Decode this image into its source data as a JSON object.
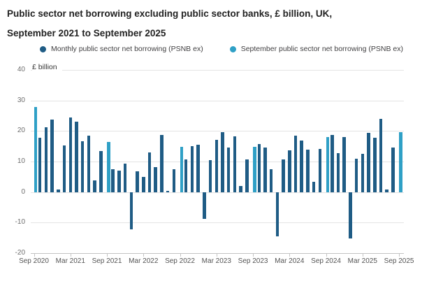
{
  "header": {
    "title_line1": "Public sector net borrowing excluding public sector banks, £ billion, UK,",
    "title_line2": "September 2021 to September 2025"
  },
  "legend": {
    "items": [
      {
        "label": "Monthly public sector net borrowing (PSNB ex)",
        "color": "#1f5c85"
      },
      {
        "label": "September public sector net borrowing (PSNB ex)",
        "color": "#2fa0c6"
      }
    ]
  },
  "axes": {
    "y_unit_label": "£ billion",
    "y_ticks": [
      40,
      30,
      20,
      10,
      0,
      -10,
      -20
    ],
    "x_ticks": [
      "Sep 2020",
      "Mar 2021",
      "Sep 2021",
      "Mar 2022",
      "Sep 2022",
      "Mar 2023",
      "Sep 2023",
      "Mar 2024",
      "Sep 2024",
      "Mar 2025",
      "Sep 2025"
    ]
  },
  "colors": {
    "monthly_bar": "#1f5c85",
    "september_bar": "#2fa0c6",
    "gridline": "#e4e4e4",
    "axis_line": "#c3c3c3",
    "title_text": "#222222",
    "x_tick_text": "#545454",
    "y_tick_text": "#6e6e6e",
    "legend_text": "#414042"
  },
  "chart_data": {
    "type": "bar",
    "title": "Public sector net borrowing excluding public sector banks, £ billion, UK, September 2021 to September 2025",
    "xlabel": "",
    "ylabel": "£ billion",
    "ylim": [
      -20,
      40
    ],
    "grid": "horizontal",
    "legend_position": "top",
    "x": [
      "Sep 2020",
      "Oct 2020",
      "Nov 2020",
      "Dec 2020",
      "Jan 2021",
      "Feb 2021",
      "Mar 2021",
      "Apr 2021",
      "May 2021",
      "Jun 2021",
      "Jul 2021",
      "Aug 2021",
      "Sep 2021",
      "Oct 2021",
      "Nov 2021",
      "Dec 2021",
      "Jan 2022",
      "Feb 2022",
      "Mar 2022",
      "Apr 2022",
      "May 2022",
      "Jun 2022",
      "Jul 2022",
      "Aug 2022",
      "Sep 2022",
      "Oct 2022",
      "Nov 2022",
      "Dec 2022",
      "Jan 2023",
      "Feb 2023",
      "Mar 2023",
      "Apr 2023",
      "May 2023",
      "Jun 2023",
      "Jul 2023",
      "Aug 2023",
      "Sep 2023",
      "Oct 2023",
      "Nov 2023",
      "Dec 2023",
      "Jan 2024",
      "Feb 2024",
      "Mar 2024",
      "Apr 2024",
      "May 2024",
      "Jun 2024",
      "Jul 2024",
      "Aug 2024",
      "Sep 2024",
      "Oct 2024",
      "Nov 2024",
      "Dec 2024",
      "Jan 2025",
      "Feb 2025",
      "Mar 2025",
      "Apr 2025",
      "May 2025",
      "Jun 2025",
      "Jul 2025",
      "Aug 2025",
      "Sep 2025"
    ],
    "series": [
      {
        "name": "Monthly public sector net borrowing (PSNB ex)",
        "color": "#1f5c85",
        "values": [
          null,
          17.8,
          21.3,
          23.7,
          0.9,
          15.2,
          24.5,
          23.1,
          16.7,
          18.4,
          3.9,
          13.4,
          null,
          7.6,
          7.1,
          9.4,
          -12.3,
          6.8,
          5.0,
          13.0,
          8.1,
          18.6,
          0.5,
          7.4,
          null,
          10.6,
          15.0,
          15.4,
          -8.8,
          10.4,
          17.0,
          19.6,
          14.7,
          18.3,
          2.0,
          10.7,
          null,
          15.7,
          14.5,
          7.4,
          -14.6,
          10.6,
          13.6,
          18.4,
          16.9,
          13.9,
          3.3,
          14.2,
          null,
          18.6,
          12.8,
          18.0,
          -15.2,
          11.0,
          12.6,
          19.4,
          17.9,
          23.9,
          0.9,
          14.6,
          null
        ]
      },
      {
        "name": "September public sector net borrowing (PSNB ex)",
        "color": "#2fa0c6",
        "values": [
          27.8,
          null,
          null,
          null,
          null,
          null,
          null,
          null,
          null,
          null,
          null,
          null,
          16.4,
          null,
          null,
          null,
          null,
          null,
          null,
          null,
          null,
          null,
          null,
          null,
          14.9,
          null,
          null,
          null,
          null,
          null,
          null,
          null,
          null,
          null,
          null,
          null,
          14.8,
          null,
          null,
          null,
          null,
          null,
          null,
          null,
          null,
          null,
          null,
          null,
          18.0,
          null,
          null,
          null,
          null,
          null,
          null,
          null,
          null,
          null,
          null,
          null,
          19.7
        ]
      }
    ]
  }
}
